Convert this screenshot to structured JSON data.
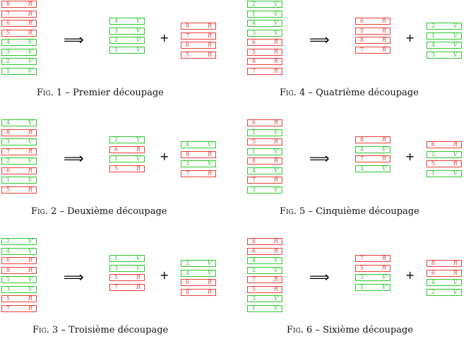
{
  "symbols": {
    "implies": "⟹",
    "plus": "+"
  },
  "panels": [
    {
      "fig": "Fig. 1",
      "dash": "–",
      "title": "Premier découpage",
      "stack": [
        [
          "8",
          "R"
        ],
        [
          "7",
          "R"
        ],
        [
          "6",
          "R"
        ],
        [
          "5",
          "R"
        ],
        [
          "4",
          "V"
        ],
        [
          "3",
          "V"
        ],
        [
          "2",
          "V"
        ],
        [
          "1",
          "V"
        ]
      ],
      "first": [
        [
          "4",
          "V"
        ],
        [
          "3",
          "V"
        ],
        [
          "2",
          "V"
        ],
        [
          "1",
          "V"
        ]
      ],
      "second": [
        [
          "8",
          "R"
        ],
        [
          "7",
          "R"
        ],
        [
          "6",
          "R"
        ],
        [
          "5",
          "R"
        ]
      ]
    },
    {
      "fig": "Fig. 4",
      "dash": "–",
      "title": "Quatrième découpage",
      "stack": [
        [
          "2",
          "V"
        ],
        [
          "1",
          "V"
        ],
        [
          "4",
          "V"
        ],
        [
          "3",
          "V"
        ],
        [
          "6",
          "R"
        ],
        [
          "5",
          "R"
        ],
        [
          "8",
          "R"
        ],
        [
          "7",
          "R"
        ]
      ],
      "first": [
        [
          "6",
          "R"
        ],
        [
          "5",
          "R"
        ],
        [
          "8",
          "R"
        ],
        [
          "7",
          "R"
        ]
      ],
      "second": [
        [
          "2",
          "V"
        ],
        [
          "1",
          "V"
        ],
        [
          "4",
          "V"
        ],
        [
          "3",
          "V"
        ]
      ]
    },
    {
      "fig": "Fig. 2",
      "dash": "–",
      "title": "Deuxième découpage",
      "stack": [
        [
          "4",
          "V"
        ],
        [
          "8",
          "R"
        ],
        [
          "3",
          "V"
        ],
        [
          "7",
          "R"
        ],
        [
          "2",
          "V"
        ],
        [
          "6",
          "R"
        ],
        [
          "1",
          "V"
        ],
        [
          "5",
          "R"
        ]
      ],
      "first": [
        [
          "2",
          "V"
        ],
        [
          "6",
          "R"
        ],
        [
          "1",
          "V"
        ],
        [
          "5",
          "R"
        ]
      ],
      "second": [
        [
          "4",
          "V"
        ],
        [
          "8",
          "R"
        ],
        [
          "3",
          "V"
        ],
        [
          "7",
          "R"
        ]
      ]
    },
    {
      "fig": "Fig. 5",
      "dash": "–",
      "title": "Cinquième découpage",
      "stack": [
        [
          "6",
          "R"
        ],
        [
          "2",
          "V"
        ],
        [
          "5",
          "R"
        ],
        [
          "1",
          "V"
        ],
        [
          "8",
          "R"
        ],
        [
          "4",
          "V"
        ],
        [
          "7",
          "R"
        ],
        [
          "3",
          "V"
        ]
      ],
      "first": [
        [
          "8",
          "R"
        ],
        [
          "4",
          "V"
        ],
        [
          "7",
          "R"
        ],
        [
          "3",
          "V"
        ]
      ],
      "second": [
        [
          "6",
          "R"
        ],
        [
          "2",
          "V"
        ],
        [
          "5",
          "R"
        ],
        [
          "1",
          "V"
        ]
      ]
    },
    {
      "fig": "Fig. 3",
      "dash": "–",
      "title": "Troisième découpage",
      "stack": [
        [
          "2",
          "V"
        ],
        [
          "4",
          "V"
        ],
        [
          "6",
          "R"
        ],
        [
          "8",
          "R"
        ],
        [
          "1",
          "V"
        ],
        [
          "3",
          "V"
        ],
        [
          "5",
          "R"
        ],
        [
          "7",
          "R"
        ]
      ],
      "first": [
        [
          "1",
          "V"
        ],
        [
          "3",
          "V"
        ],
        [
          "5",
          "R"
        ],
        [
          "7",
          "R"
        ]
      ],
      "second": [
        [
          "2",
          "V"
        ],
        [
          "4",
          "V"
        ],
        [
          "6",
          "R"
        ],
        [
          "8",
          "R"
        ]
      ]
    },
    {
      "fig": "Fig. 6",
      "dash": "–",
      "title": "Sixième découpage",
      "stack": [
        [
          "8",
          "R"
        ],
        [
          "6",
          "R"
        ],
        [
          "4",
          "V"
        ],
        [
          "2",
          "V"
        ],
        [
          "7",
          "R"
        ],
        [
          "5",
          "R"
        ],
        [
          "3",
          "V"
        ],
        [
          "1",
          "V"
        ]
      ],
      "first": [
        [
          "7",
          "R"
        ],
        [
          "5",
          "R"
        ],
        [
          "3",
          "V"
        ],
        [
          "1",
          "V"
        ]
      ],
      "second": [
        [
          "8",
          "R"
        ],
        [
          "6",
          "R"
        ],
        [
          "4",
          "V"
        ],
        [
          "2",
          "V"
        ]
      ]
    }
  ]
}
